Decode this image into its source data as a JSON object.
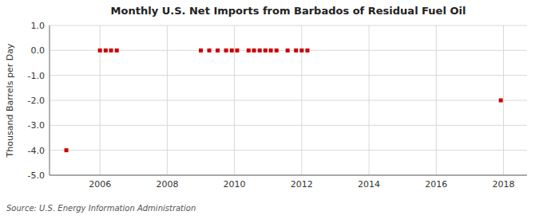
{
  "chart_data": {
    "type": "scatter",
    "title": "Monthly U.S. Net Imports from Barbados of Residual Fuel Oil",
    "y_label": "Thousand Barrels per Day",
    "annotations": [
      "Source: U.S. Energy Information Administration"
    ],
    "xlim": [
      2004.5,
      2018.7
    ],
    "ylim": [
      -5.0,
      1.0
    ],
    "xticks": [
      2006,
      2008,
      2010,
      2012,
      2014,
      2016,
      2018
    ],
    "yticks": [
      {
        "value": 1.0,
        "label": "1.0"
      },
      {
        "value": 0.0,
        "label": "0.0"
      },
      {
        "value": -1.0,
        "label": "-1.0"
      },
      {
        "value": -2.0,
        "label": "-2.0"
      },
      {
        "value": -3.0,
        "label": "-3.0"
      },
      {
        "value": -4.0,
        "label": "-4.0"
      },
      {
        "value": -5.0,
        "label": "-5.0"
      }
    ],
    "grid": true,
    "color": "#cc0000",
    "marker": "square",
    "x": [
      2005.0,
      2006.0,
      2006.17,
      2006.33,
      2006.5,
      2009.0,
      2009.25,
      2009.5,
      2009.75,
      2009.92,
      2010.08,
      2010.42,
      2010.58,
      2010.75,
      2010.92,
      2011.08,
      2011.25,
      2011.58,
      2011.83,
      2012.0,
      2012.17,
      2017.92
    ],
    "values": [
      -4.0,
      0.0,
      0.0,
      0.0,
      0.0,
      0.0,
      0.0,
      0.0,
      0.0,
      0.0,
      0.0,
      0.0,
      0.0,
      0.0,
      0.0,
      0.0,
      0.0,
      0.0,
      0.0,
      0.0,
      0.0,
      -2.0
    ]
  }
}
